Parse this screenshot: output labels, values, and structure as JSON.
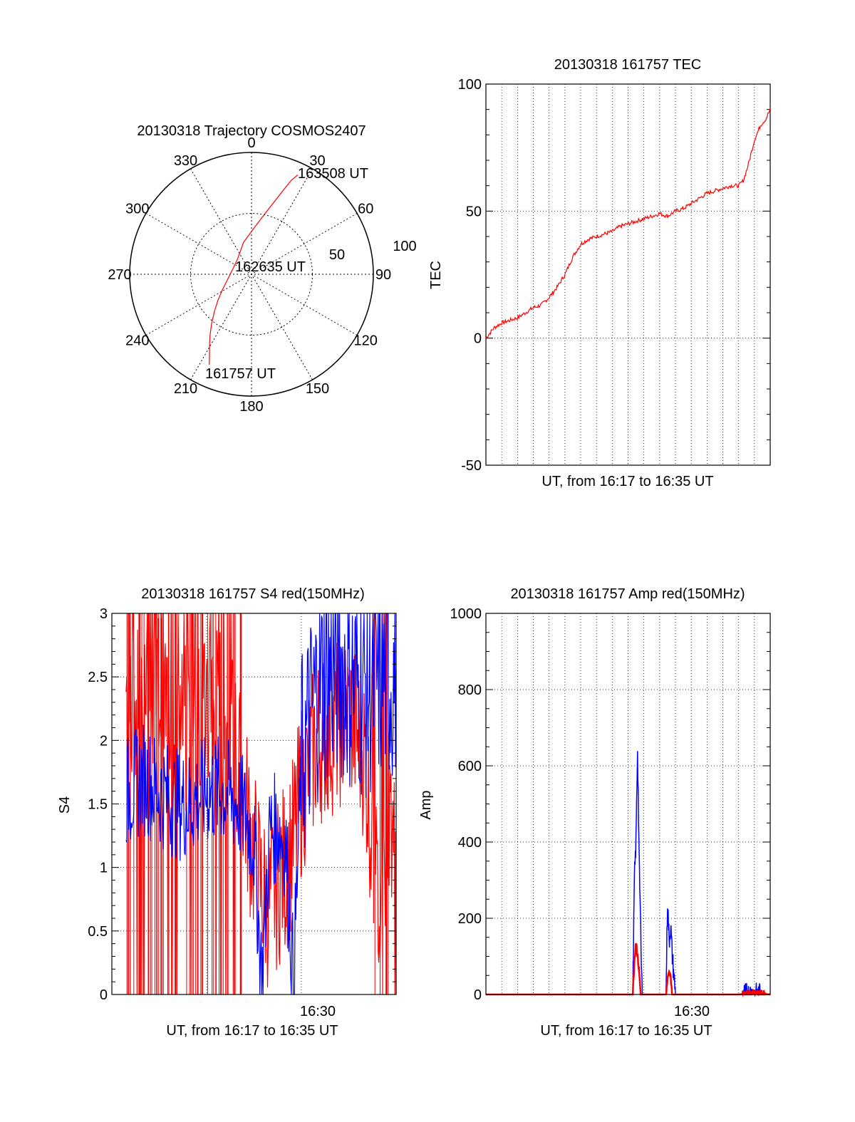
{
  "chart_data": [
    {
      "type": "polar",
      "title": "20130318 Trajectory COSMOS2407",
      "angle_labels": [
        "0",
        "30",
        "60",
        "90",
        "120",
        "150",
        "180",
        "210",
        "240",
        "270",
        "300",
        "330"
      ],
      "radius_labels": [
        "50",
        "100"
      ],
      "radius_max": 100,
      "series_color": "#ff0000",
      "trajectory": {
        "azimuth_deg": [
          205,
          207,
          210,
          214,
          219,
          225,
          232,
          242,
          258,
          285,
          318,
          346,
          4,
          13,
          18,
          21,
          23,
          25
        ],
        "radius": [
          82,
          76,
          69,
          61,
          52,
          43,
          35,
          27,
          20,
          16,
          17,
          27,
          39,
          52,
          64,
          75,
          84,
          90
        ]
      },
      "annotations": [
        "163508 UT",
        "162635 UT",
        "161757 UT"
      ]
    },
    {
      "type": "line",
      "title": "20130318 161757 TEC",
      "xlabel": "UT, from 16:17 to 16:35 UT",
      "ylabel": "TEC",
      "xlim": [
        0,
        18
      ],
      "ylim": [
        -50,
        100
      ],
      "yticks": [
        "-50",
        "0",
        "50",
        "100"
      ],
      "grid": true,
      "series": [
        {
          "name": "TEC",
          "color": "#ff0000",
          "x": [
            0,
            0.5,
            1.0,
            1.5,
            2.0,
            2.5,
            3.0,
            3.5,
            4.0,
            4.5,
            5.0,
            5.5,
            6.0,
            6.5,
            7.0,
            7.5,
            8.0,
            8.5,
            9.0,
            9.5,
            10.0,
            10.5,
            11.0,
            11.5,
            12.0,
            12.5,
            13.0,
            13.5,
            14.0,
            14.5,
            15.0,
            15.5,
            16.0,
            16.3,
            16.6,
            17.0,
            17.4,
            17.7,
            18.0
          ],
          "y": [
            0,
            4,
            6,
            7,
            8,
            10,
            12,
            13,
            16,
            20,
            25,
            32,
            37,
            39,
            40,
            41,
            42,
            44,
            45,
            46,
            47,
            48,
            49,
            48,
            50,
            51,
            53,
            55,
            57,
            58,
            59,
            60,
            60,
            62,
            68,
            78,
            84,
            86,
            90
          ]
        }
      ]
    },
    {
      "type": "line",
      "title": "20130318 161757 S4 red(150MHz)",
      "xlabel": "UT, from 16:17 to 16:35 UT",
      "ylabel": "S4",
      "xlim": [
        0,
        18
      ],
      "ylim": [
        0,
        3
      ],
      "yticks": [
        "0",
        "0.5",
        "1",
        "1.5",
        "2",
        "2.5",
        "3"
      ],
      "xticks": [
        "16:30"
      ],
      "grid": true,
      "series": [
        {
          "name": "S4 red",
          "color": "#ff0000",
          "x": [
            0,
            1,
            2,
            3,
            4,
            5,
            6,
            7,
            8,
            9,
            9.5,
            10,
            10.5,
            11,
            11.5,
            12,
            13,
            14,
            15,
            16,
            17,
            17.5,
            18
          ],
          "y": [
            1.6,
            2.2,
            2.6,
            2.4,
            2.2,
            2.0,
            2.4,
            2.2,
            1.8,
            1.1,
            0.8,
            0.7,
            0.9,
            1.0,
            1.2,
            1.6,
            2.0,
            2.1,
            2.2,
            1.9,
            0.5,
            1.4,
            1.5
          ]
        },
        {
          "name": "S4 blue",
          "color": "#0000ff",
          "x": [
            0,
            1,
            2,
            3,
            4,
            5,
            6,
            7,
            8,
            8.5,
            9,
            9.5,
            10,
            10.5,
            11,
            11.5,
            12,
            13,
            14,
            15,
            16,
            17,
            18
          ],
          "y": [
            1.5,
            1.6,
            1.7,
            1.6,
            1.5,
            1.5,
            1.6,
            1.6,
            1.5,
            1.4,
            1.2,
            0.1,
            1.3,
            1.3,
            1.2,
            0.1,
            1.8,
            2.4,
            2.6,
            2.5,
            2.4,
            2.5,
            2.5
          ]
        }
      ]
    },
    {
      "type": "line",
      "title": "20130318 161757 Amp red(150MHz)",
      "xlabel": "UT, from 16:17 to 16:35 UT",
      "ylabel": "Amp",
      "xlim": [
        0,
        18
      ],
      "ylim": [
        0,
        1000
      ],
      "yticks": [
        "0",
        "200",
        "400",
        "600",
        "800",
        "1000"
      ],
      "xticks": [
        "16:30"
      ],
      "grid": true,
      "series": [
        {
          "name": "Amp blue",
          "color": "#0000ff",
          "x": [
            0,
            9.0,
            9.3,
            9.4,
            9.5,
            9.6,
            9.7,
            9.9,
            10.0,
            11.0,
            11.4,
            11.5,
            11.6,
            11.7,
            11.8,
            12.0,
            16.0,
            16.5,
            17.0,
            18.0
          ],
          "y": [
            0,
            0,
            0,
            300,
            400,
            650,
            350,
            0,
            0,
            0,
            0,
            250,
            140,
            180,
            100,
            0,
            0,
            2,
            2,
            0
          ]
        },
        {
          "name": "Amp red",
          "color": "#ff0000",
          "x": [
            0,
            9.3,
            9.4,
            9.5,
            9.6,
            9.7,
            9.8,
            11.4,
            11.5,
            11.6,
            11.7,
            11.8,
            16.0,
            17.0,
            18.0
          ],
          "y": [
            0,
            0,
            90,
            140,
            100,
            60,
            0,
            0,
            40,
            55,
            45,
            0,
            0,
            4,
            0
          ]
        }
      ]
    }
  ]
}
